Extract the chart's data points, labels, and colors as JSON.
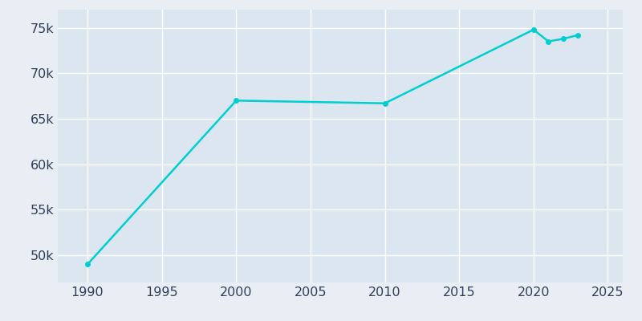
{
  "years": [
    1990,
    2000,
    2010,
    2020,
    2021,
    2022,
    2023
  ],
  "population": [
    49000,
    67000,
    66700,
    74800,
    73500,
    73800,
    74200
  ],
  "line_color": "#00CED1",
  "marker_color": "#00CED1",
  "bg_color": "#E8EEF4",
  "plot_bg_color": "#DCE6F0",
  "grid_color": "#FFFFFF",
  "tick_color": "#2F3E5B",
  "xlim": [
    1988,
    2026
  ],
  "ylim": [
    47000,
    77000
  ],
  "xticks": [
    1990,
    1995,
    2000,
    2005,
    2010,
    2015,
    2020,
    2025
  ],
  "yticks": [
    50000,
    55000,
    60000,
    65000,
    70000,
    75000
  ],
  "linewidth": 1.8,
  "markersize": 4,
  "tick_fontsize": 11.5
}
